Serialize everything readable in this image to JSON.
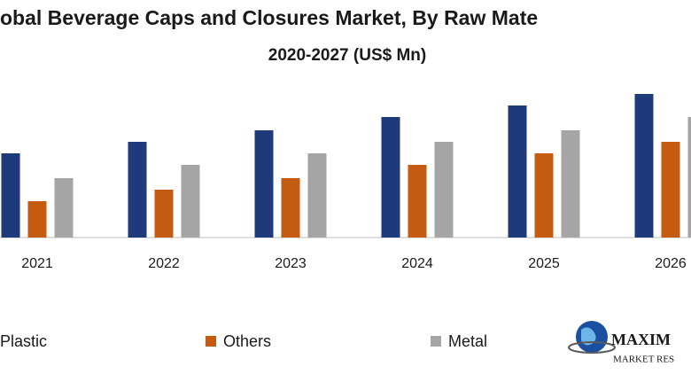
{
  "chart_data": {
    "type": "bar",
    "title": "obal Beverage Caps and Closures Market, By Raw Mate",
    "subtitle": "2020-2027 (US$ Mn)",
    "categories": [
      "2021",
      "2022",
      "2023",
      "2024",
      "2025",
      "2026"
    ],
    "series": [
      {
        "name": "Plastic",
        "color": "#1f3a7a",
        "values": [
          95,
          108,
          121,
          136,
          149,
          162
        ]
      },
      {
        "name": "Others",
        "color": "#c55a11",
        "values": [
          41,
          54,
          67,
          82,
          95,
          108
        ]
      },
      {
        "name": "Metal",
        "color": "#a5a5a5",
        "values": [
          67,
          82,
          95,
          108,
          121,
          136
        ]
      }
    ],
    "logo": {
      "name": "MAXIM",
      "tagline": "MARKET RES"
    }
  }
}
